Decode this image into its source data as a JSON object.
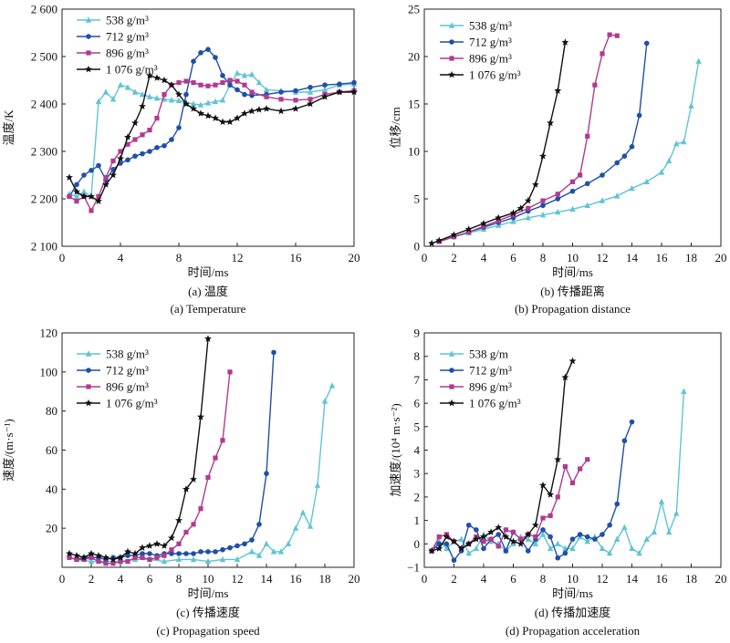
{
  "chart_data": [
    {
      "type": "line",
      "caption_cn": "(a) 温度",
      "caption_en": "(a) Temperature",
      "xlabel": "时间/ms",
      "ylabel": "温度/K",
      "xlim": [
        0,
        20
      ],
      "ylim": [
        2100,
        2600
      ],
      "xticks": [
        0,
        4,
        8,
        12,
        16,
        20
      ],
      "yticks": [
        2100,
        2200,
        2300,
        2400,
        2500,
        2600
      ],
      "ytick_labels": [
        "2 100",
        "2 200",
        "2 300",
        "2 400",
        "2 500",
        "2 600"
      ],
      "legend_position": "top-left",
      "series": [
        {
          "name": "538 g/m³",
          "color": "#5fc4d4",
          "marker": "triangle",
          "x": [
            0.5,
            1,
            1.5,
            2,
            2.5,
            3,
            3.5,
            4,
            4.5,
            5,
            5.5,
            6,
            6.5,
            7,
            7.5,
            8,
            8.5,
            9,
            9.5,
            10,
            10.5,
            11,
            11.5,
            12,
            12.5,
            13,
            13.5,
            14,
            15,
            16,
            17,
            18,
            19,
            20
          ],
          "y": [
            2210,
            2205,
            2215,
            2205,
            2405,
            2425,
            2410,
            2440,
            2435,
            2425,
            2420,
            2415,
            2412,
            2410,
            2408,
            2407,
            2403,
            2400,
            2398,
            2402,
            2405,
            2408,
            2440,
            2465,
            2460,
            2462,
            2445,
            2430,
            2428,
            2425,
            2425,
            2430,
            2440,
            2442
          ]
        },
        {
          "name": "712 g/m³",
          "color": "#1f4fa8",
          "marker": "circle",
          "x": [
            0.5,
            1,
            1.5,
            2,
            2.5,
            3,
            3.5,
            4,
            4.5,
            5,
            5.5,
            6,
            6.5,
            7,
            7.5,
            8,
            8.5,
            9,
            9.5,
            10,
            10.5,
            11,
            11.5,
            12,
            12.5,
            13,
            14,
            15,
            16,
            17,
            18,
            19,
            20
          ],
          "y": [
            2205,
            2230,
            2250,
            2260,
            2270,
            2240,
            2262,
            2275,
            2282,
            2290,
            2295,
            2300,
            2308,
            2312,
            2325,
            2350,
            2420,
            2490,
            2508,
            2515,
            2498,
            2460,
            2440,
            2430,
            2420,
            2418,
            2420,
            2425,
            2428,
            2435,
            2440,
            2442,
            2445
          ]
        },
        {
          "name": "896 g/m³",
          "color": "#b03a8f",
          "marker": "square",
          "x": [
            0.5,
            1,
            1.5,
            2,
            2.5,
            3,
            3.5,
            4,
            4.5,
            5,
            5.5,
            6,
            6.5,
            7,
            7.5,
            8,
            8.5,
            9,
            9.5,
            10,
            10.5,
            11,
            11.5,
            12,
            12.5,
            13,
            14,
            15,
            16,
            17,
            18,
            19,
            20
          ],
          "y": [
            2205,
            2195,
            2205,
            2175,
            2205,
            2245,
            2280,
            2300,
            2315,
            2325,
            2335,
            2345,
            2370,
            2420,
            2440,
            2445,
            2448,
            2445,
            2440,
            2438,
            2440,
            2445,
            2450,
            2448,
            2440,
            2425,
            2415,
            2410,
            2408,
            2410,
            2420,
            2425,
            2428
          ]
        },
        {
          "name": "1 076 g/m³",
          "color": "#111111",
          "marker": "star",
          "x": [
            0.5,
            1,
            1.5,
            2,
            2.5,
            3,
            3.5,
            4,
            4.5,
            5,
            5.5,
            6,
            6.5,
            7,
            7.5,
            8,
            8.5,
            9,
            9.5,
            10,
            10.5,
            11,
            11.5,
            12,
            12.5,
            13,
            13.5,
            14,
            15,
            16,
            17,
            18,
            19,
            20
          ],
          "y": [
            2245,
            2215,
            2205,
            2205,
            2195,
            2230,
            2250,
            2285,
            2330,
            2360,
            2395,
            2460,
            2455,
            2450,
            2440,
            2420,
            2400,
            2390,
            2380,
            2375,
            2370,
            2362,
            2362,
            2370,
            2380,
            2385,
            2388,
            2390,
            2385,
            2390,
            2400,
            2415,
            2425,
            2425
          ]
        }
      ]
    },
    {
      "type": "line",
      "caption_cn": "(b) 传播距离",
      "caption_en": "(b) Propagation distance",
      "xlabel": "时间/ms",
      "ylabel": "位移/cm",
      "xlim": [
        0,
        20
      ],
      "ylim": [
        0,
        25
      ],
      "xticks": [
        0,
        2,
        4,
        6,
        8,
        10,
        12,
        14,
        16,
        18,
        20
      ],
      "yticks": [
        0,
        5,
        10,
        15,
        20,
        25
      ],
      "ytick_labels": [
        "0",
        "5",
        "10",
        "15",
        "20",
        "25"
      ],
      "legend_position": "top-left",
      "series": [
        {
          "name": "538 g/m³",
          "color": "#5fc4d4",
          "marker": "triangle",
          "x": [
            1,
            2,
            3,
            4,
            5,
            6,
            7,
            8,
            9,
            10,
            11,
            12,
            13,
            14,
            15,
            16,
            16.5,
            17,
            17.5,
            18,
            18.5
          ],
          "y": [
            0.5,
            1.0,
            1.4,
            1.8,
            2.2,
            2.6,
            3.0,
            3.3,
            3.6,
            3.9,
            4.3,
            4.8,
            5.3,
            6.1,
            6.8,
            7.8,
            9.0,
            10.8,
            11.0,
            14.8,
            19.5
          ]
        },
        {
          "name": "712 g/m³",
          "color": "#1f4fa8",
          "marker": "circle",
          "x": [
            1,
            2,
            3,
            4,
            5,
            6,
            7,
            8,
            9,
            10,
            11,
            12,
            13,
            13.5,
            14,
            14.5,
            15
          ],
          "y": [
            0.5,
            1.0,
            1.5,
            2.0,
            2.5,
            3.0,
            3.7,
            4.3,
            5.0,
            5.8,
            6.6,
            7.5,
            8.8,
            9.5,
            10.5,
            13.8,
            21.4
          ]
        },
        {
          "name": "896 g/m³",
          "color": "#b03a8f",
          "marker": "square",
          "x": [
            1,
            2,
            3,
            4,
            5,
            6,
            7,
            8,
            9,
            10,
            10.5,
            11,
            11.5,
            12,
            12.5,
            13
          ],
          "y": [
            0.5,
            1.0,
            1.5,
            2.1,
            2.7,
            3.3,
            4.0,
            4.8,
            5.5,
            6.8,
            7.5,
            11.6,
            17.0,
            20.3,
            22.3,
            22.2
          ]
        },
        {
          "name": "1 076 g/m³",
          "color": "#111111",
          "marker": "star",
          "x": [
            0.5,
            1,
            2,
            3,
            4,
            5,
            6,
            6.5,
            7,
            7.5,
            8,
            8.5,
            9,
            9.5
          ],
          "y": [
            0.3,
            0.6,
            1.2,
            1.8,
            2.4,
            3.0,
            3.5,
            4.0,
            4.8,
            6.5,
            9.5,
            13.0,
            16.4,
            21.5
          ]
        }
      ]
    },
    {
      "type": "line",
      "caption_cn": "(c) 传播速度",
      "caption_en": "(c) Propagation speed",
      "xlabel": "时间/ms",
      "ylabel": "速度/(m·s⁻¹)",
      "xlim": [
        0,
        20
      ],
      "ylim": [
        0,
        120
      ],
      "xticks": [
        0,
        2,
        4,
        6,
        8,
        10,
        12,
        14,
        16,
        18,
        20
      ],
      "yticks": [
        20,
        40,
        60,
        80,
        100,
        120
      ],
      "ytick_labels": [
        "20",
        "40",
        "60",
        "80",
        "100",
        "120"
      ],
      "legend_position": "top-left",
      "series": [
        {
          "name": "538 g/m³",
          "color": "#5fc4d4",
          "marker": "triangle",
          "x": [
            1,
            2,
            3,
            4,
            5,
            6,
            7,
            8,
            9,
            10,
            11,
            12,
            13,
            13.5,
            14,
            14.5,
            15,
            15.5,
            16,
            16.5,
            17,
            17.5,
            18,
            18.5
          ],
          "y": [
            4,
            3,
            3,
            3,
            4,
            4,
            3,
            4,
            4,
            3,
            4,
            4,
            8,
            6,
            12,
            8,
            8,
            12,
            20,
            28,
            21,
            42,
            85,
            93
          ]
        },
        {
          "name": "712 g/m³",
          "color": "#1f4fa8",
          "marker": "circle",
          "x": [
            0.5,
            1,
            1.5,
            2,
            2.5,
            3,
            3.5,
            4,
            4.5,
            5,
            5.5,
            6,
            6.5,
            7,
            7.5,
            8,
            8.5,
            9,
            9.5,
            10,
            10.5,
            11,
            11.5,
            12,
            12.5,
            13,
            13.5,
            14,
            14.5
          ],
          "y": [
            5,
            4,
            5,
            5,
            5,
            4,
            5,
            5,
            6,
            6,
            7,
            7,
            6,
            7,
            7,
            7,
            7,
            7,
            8,
            8,
            8,
            9,
            10,
            11,
            12,
            14,
            22,
            48,
            110
          ]
        },
        {
          "name": "896 g/m³",
          "color": "#b03a8f",
          "marker": "square",
          "x": [
            0.5,
            1,
            1.5,
            2,
            2.5,
            3,
            3.5,
            4,
            4.5,
            5,
            5.5,
            6,
            6.5,
            7,
            7.5,
            8,
            8.5,
            9,
            9.5,
            10,
            10.5,
            11,
            11.5
          ],
          "y": [
            5,
            4,
            4,
            5,
            3,
            2,
            2,
            3,
            3,
            5,
            5,
            4,
            5,
            6,
            9,
            12,
            18,
            22,
            30,
            46,
            56,
            65,
            100
          ]
        },
        {
          "name": "1 076 g/m³",
          "color": "#111111",
          "marker": "star",
          "x": [
            0.5,
            1,
            1.5,
            2,
            2.5,
            3,
            3.5,
            4,
            4.5,
            5,
            5.5,
            6,
            6.5,
            7,
            7.5,
            8,
            8.5,
            9,
            9.5,
            10
          ],
          "y": [
            7,
            6,
            5,
            7,
            6,
            5,
            4,
            5,
            8,
            7,
            10,
            11,
            12,
            11,
            15,
            24,
            40,
            45,
            77,
            117
          ]
        }
      ]
    },
    {
      "type": "line",
      "caption_cn": "(d) 传播加速度",
      "caption_en": "(d) Propagation acceleration",
      "xlabel": "时间/ms",
      "ylabel": "加速度/(10⁴ m·s⁻²)",
      "xlim": [
        0,
        20
      ],
      "ylim": [
        -1,
        9
      ],
      "xticks": [
        0,
        2,
        4,
        6,
        8,
        10,
        12,
        14,
        16,
        18,
        20
      ],
      "yticks": [
        -1,
        0,
        1,
        2,
        3,
        4,
        5,
        6,
        7,
        8,
        9
      ],
      "ytick_labels": [
        "−1",
        "0",
        "1",
        "2",
        "3",
        "4",
        "5",
        "6",
        "7",
        "8",
        "9"
      ],
      "legend_position": "top-left",
      "series": [
        {
          "name": "538 g/m",
          "color": "#5fc4d4",
          "marker": "triangle",
          "x": [
            0.5,
            1,
            1.5,
            2,
            2.5,
            3,
            3.5,
            4,
            4.5,
            5,
            5.5,
            6,
            6.5,
            7,
            7.5,
            8,
            8.5,
            9,
            9.5,
            10,
            10.5,
            11,
            11.5,
            12,
            12.5,
            13,
            13.5,
            14,
            14.5,
            15,
            15.5,
            16,
            16.5,
            17,
            17.5
          ],
          "y": [
            -0.3,
            0.1,
            -0.2,
            0.1,
            0.2,
            -0.4,
            -0.2,
            0.4,
            0.1,
            0,
            -0.3,
            0,
            0.3,
            0.2,
            0,
            0.4,
            -0.2,
            0,
            -0.2,
            -0.2,
            0.3,
            0.1,
            0.3,
            -0.2,
            -0.4,
            0.2,
            0.7,
            -0.2,
            -0.4,
            0.2,
            0.5,
            1.8,
            0.5,
            1.3,
            6.5
          ]
        },
        {
          "name": "712 g/m³",
          "color": "#1f4fa8",
          "marker": "circle",
          "x": [
            0.5,
            1,
            1.5,
            2,
            2.5,
            3,
            3.5,
            4,
            4.5,
            5,
            5.5,
            6,
            6.5,
            7,
            7.5,
            8,
            8.5,
            9,
            9.5,
            10,
            10.5,
            11,
            11.5,
            12,
            12.5,
            13,
            13.5,
            14
          ],
          "y": [
            -0.3,
            0,
            0,
            -0.7,
            -0.3,
            0.8,
            0.6,
            -0.2,
            0.2,
            0.4,
            -0.3,
            0.5,
            0.2,
            -0.3,
            0.2,
            0.6,
            0.3,
            -0.6,
            -0.4,
            0.2,
            0.4,
            0.3,
            0.2,
            0.4,
            0.8,
            1.7,
            4.4,
            5.2
          ]
        },
        {
          "name": "896 g/m³",
          "color": "#b03a8f",
          "marker": "square",
          "x": [
            0.5,
            1,
            1.5,
            2,
            2.5,
            3,
            3.5,
            4,
            4.5,
            5,
            5.5,
            6,
            6.5,
            7,
            7.5,
            8,
            8.5,
            9,
            9.5,
            10,
            10.5,
            11
          ],
          "y": [
            -0.3,
            0.3,
            0.4,
            0.1,
            -0.2,
            0,
            0.3,
            0.1,
            0.2,
            -0.1,
            0.6,
            0.5,
            0.2,
            0.4,
            0.3,
            1.1,
            1.2,
            2.0,
            3.3,
            2.6,
            3.2,
            3.6
          ]
        },
        {
          "name": "1 076 g/m³",
          "color": "#111111",
          "marker": "star",
          "x": [
            0.5,
            1,
            1.5,
            2,
            2.5,
            3,
            3.5,
            4,
            4.5,
            5,
            5.5,
            6,
            6.5,
            7,
            7.5,
            8,
            8.5,
            9,
            9.5,
            10
          ],
          "y": [
            -0.3,
            -0.2,
            0.3,
            0.1,
            -0.2,
            0,
            0.2,
            0.3,
            0.5,
            0.7,
            0.3,
            0.1,
            0,
            0.4,
            0.8,
            2.5,
            2.1,
            3.6,
            7.1,
            7.8
          ]
        }
      ]
    }
  ]
}
